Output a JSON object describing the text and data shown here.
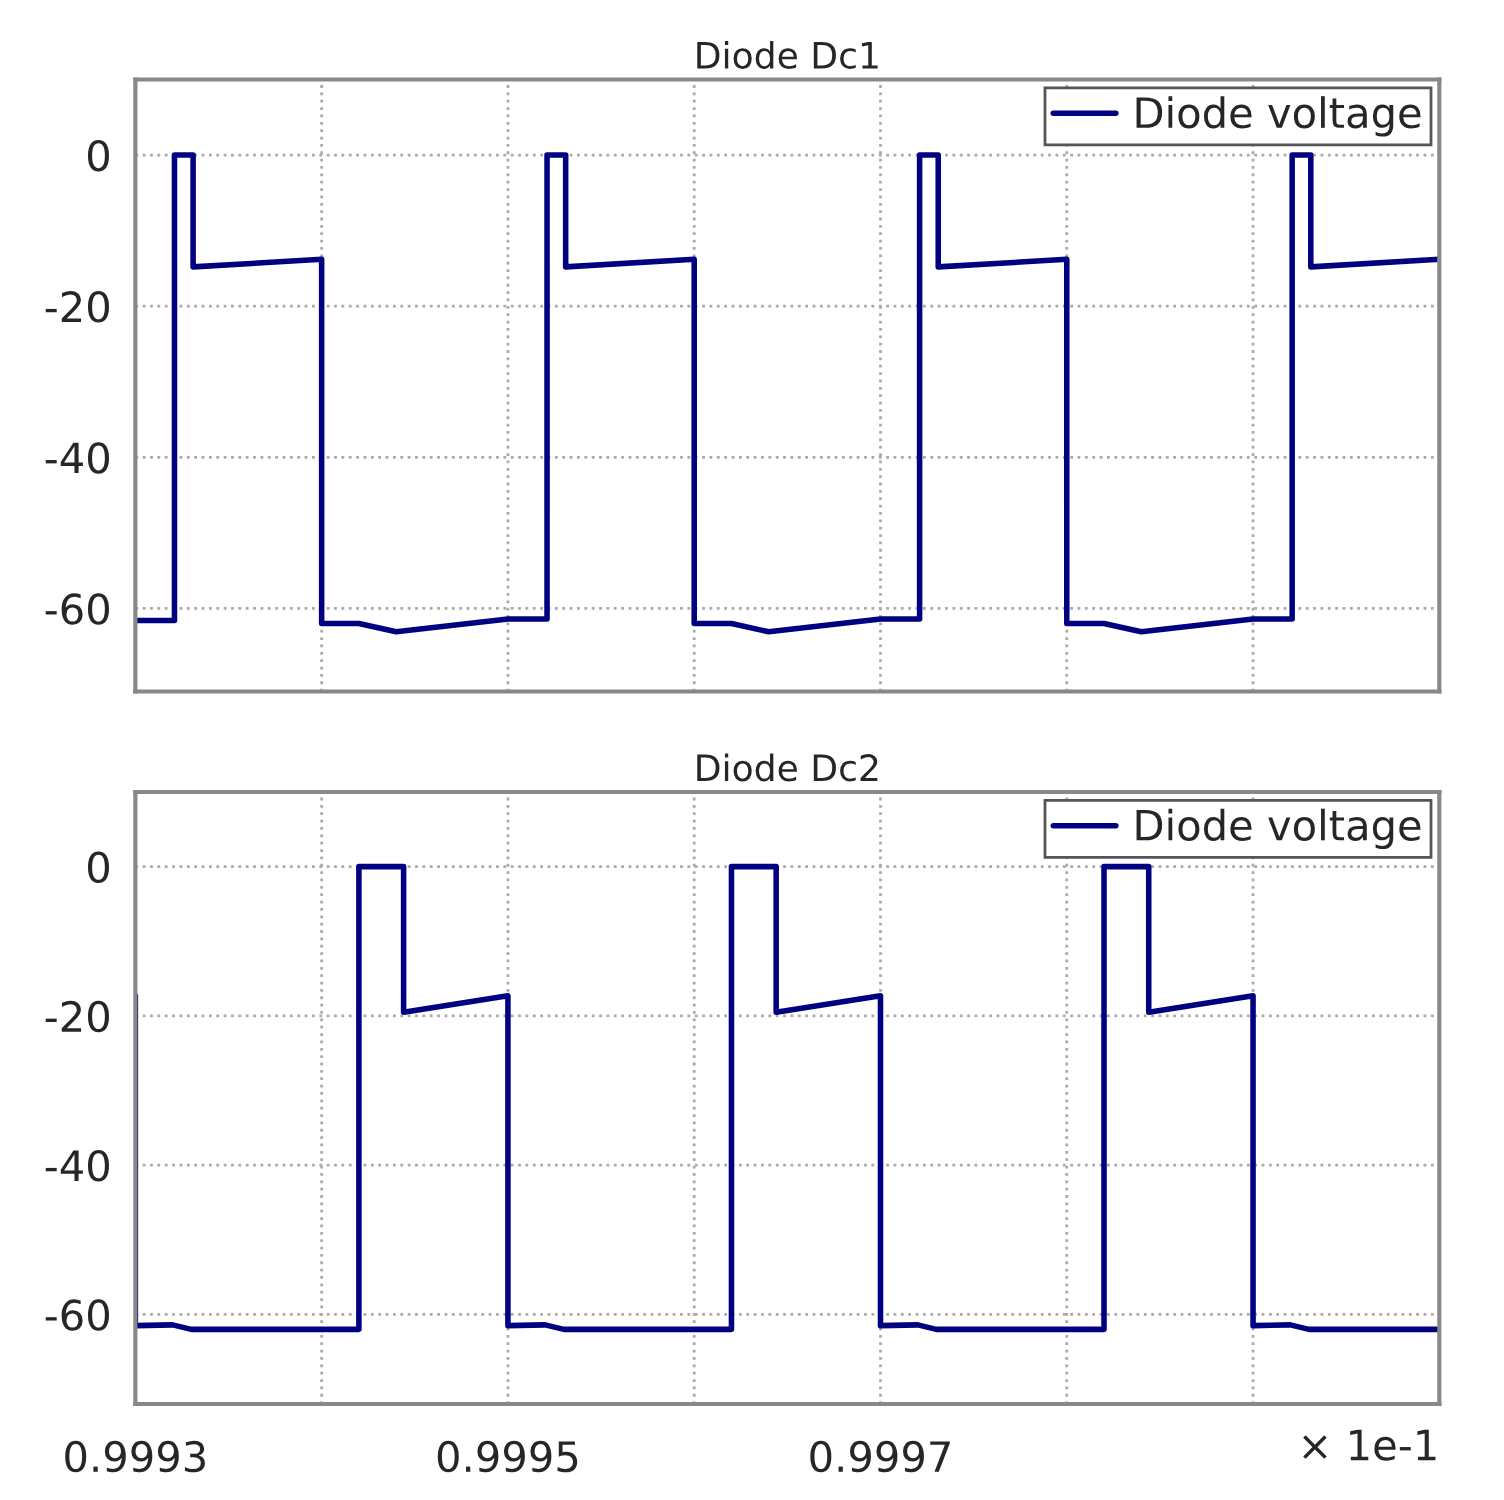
{
  "chart_data": [
    {
      "type": "line",
      "title": "Diode Dc1",
      "xlim": [
        0.9993,
        1.0
      ],
      "ylim": [
        -71,
        10
      ],
      "xticks": [
        {
          "value": 0.9993,
          "label": null
        },
        {
          "value": 0.9994,
          "label": null
        },
        {
          "value": 0.9995,
          "label": null
        },
        {
          "value": 0.9996,
          "label": null
        },
        {
          "value": 0.9997,
          "label": null
        },
        {
          "value": 0.9998,
          "label": null
        },
        {
          "value": 0.9999,
          "label": null
        }
      ],
      "yticks": [
        -60,
        -40,
        -20,
        0
      ],
      "tick_labels": "y",
      "grid": true,
      "legend": "top right",
      "line_style": "solid",
      "marker": "none",
      "series": [
        {
          "name": "Diode voltage",
          "color": "#000080",
          "x": [
            0.9993,
            0.999321,
            0.999321,
            0.999331,
            0.999331,
            0.9994,
            0.9994,
            0.99942,
            0.99944,
            0.9995,
            0.999521,
            0.999521,
            0.999531,
            0.999531,
            0.9996,
            0.9996,
            0.99962,
            0.99964,
            0.9997,
            0.999721,
            0.999721,
            0.999731,
            0.999731,
            0.9998,
            0.9998,
            0.99982,
            0.99984,
            0.9999,
            0.999921,
            0.999921,
            0.999931,
            0.999931,
            1.0
          ],
          "values": [
            -61.6,
            -61.6,
            0,
            0,
            -14.8,
            -13.8,
            -62.0,
            -62.0,
            -63.1,
            -61.4,
            -61.4,
            0,
            0,
            -14.8,
            -13.8,
            -62.0,
            -62.0,
            -63.1,
            -61.4,
            -61.4,
            0,
            0,
            -14.8,
            -13.8,
            -62.0,
            -62.0,
            -63.1,
            -61.4,
            -61.4,
            0,
            0,
            -14.8,
            -13.8
          ]
        }
      ]
    },
    {
      "type": "line",
      "title": "Diode Dc2",
      "xlim": [
        0.9993,
        1.0
      ],
      "ylim": [
        -72,
        10
      ],
      "xticks": [
        0.9993,
        {
          "value": 0.9994,
          "label": null
        },
        0.9995,
        {
          "value": 0.9996,
          "label": null
        },
        0.9997,
        {
          "value": 0.9998,
          "label": null
        },
        {
          "value": 0.9999,
          "label": null
        }
      ],
      "yticks": [
        -60,
        -40,
        -20,
        0
      ],
      "grid": true,
      "legend": "top right",
      "line_style": "solid",
      "marker": "none",
      "annotations": [
        "× 1e-1"
      ],
      "series": [
        {
          "name": "Diode voltage",
          "color": "#000080",
          "x": [
            0.9993,
            0.9993,
            0.99932,
            0.99933,
            0.99942,
            0.99942,
            0.999444,
            0.999444,
            0.9995,
            0.9995,
            0.99952,
            0.99953,
            0.99962,
            0.99962,
            0.999644,
            0.999644,
            0.9997,
            0.9997,
            0.99972,
            0.99973,
            0.99982,
            0.99982,
            0.999844,
            0.999844,
            0.9999,
            0.9999,
            0.99992,
            0.99993,
            1.0
          ],
          "values": [
            -17.3,
            -61.5,
            -61.4,
            -62.0,
            -62.0,
            0,
            0,
            -19.5,
            -17.3,
            -61.5,
            -61.4,
            -62.0,
            -62.0,
            0,
            0,
            -19.5,
            -17.3,
            -61.5,
            -61.4,
            -62.0,
            -62.0,
            0,
            0,
            -19.5,
            -17.3,
            -61.5,
            -61.4,
            -62.0,
            -62.0
          ]
        }
      ]
    }
  ]
}
